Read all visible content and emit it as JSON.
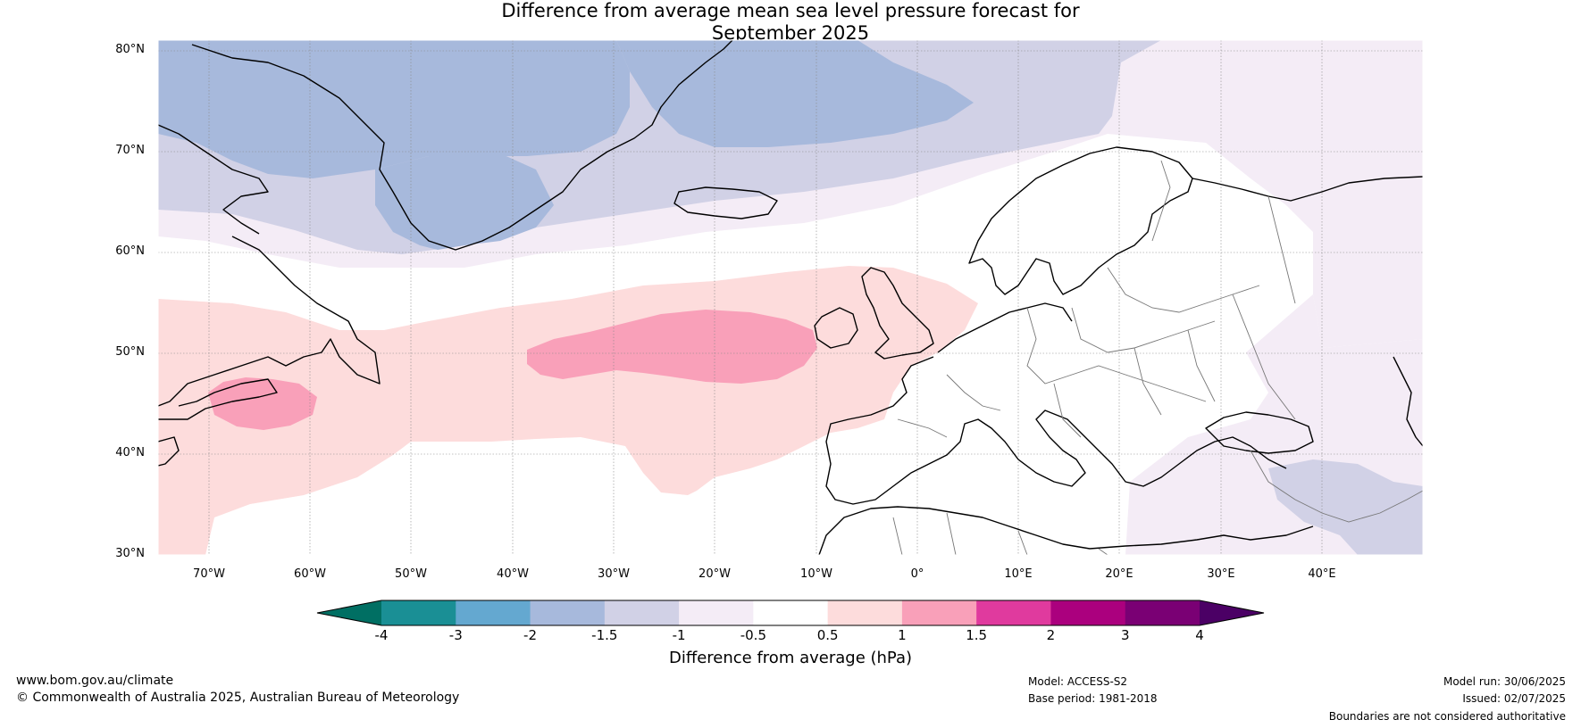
{
  "title": {
    "line1": "Difference from average mean sea level pressure forecast for",
    "line2": "September 2025"
  },
  "map": {
    "lat_labels": [
      "80°N",
      "70°N",
      "60°N",
      "50°N",
      "40°N",
      "30°N"
    ],
    "lon_labels": [
      "70°W",
      "60°W",
      "50°W",
      "40°W",
      "30°W",
      "20°W",
      "10°W",
      "0°",
      "10°E",
      "20°E",
      "30°E",
      "40°E"
    ]
  },
  "colorbar": {
    "title": "Difference from average (hPa)",
    "ticks": [
      "-4",
      "-3",
      "-2",
      "-1.5",
      "-1",
      "-0.5",
      "0.5",
      "1",
      "1.5",
      "2",
      "3",
      "4"
    ],
    "colors": [
      "#1a8f95",
      "#64a8d0",
      "#a7b9dc",
      "#d1d1e6",
      "#f4ecf6",
      "#ffffff",
      "#fddcdc",
      "#f9a0b9",
      "#e03a9e",
      "#ab007e",
      "#7a0074"
    ],
    "extend_low_color": "#006f63",
    "extend_high_color": "#4b0065"
  },
  "footer": {
    "website": "www.bom.gov.au/climate",
    "copyright": "© Commonwealth of Australia 2025, Australian Bureau of Meteorology",
    "model": "Model: ACCESS-S2",
    "base_period": "Base period: 1981-2018",
    "model_run": "Model run: 30/06/2025",
    "issued": "Issued: 02/07/2025",
    "disclaimer": "Boundaries are not considered authoritative"
  }
}
